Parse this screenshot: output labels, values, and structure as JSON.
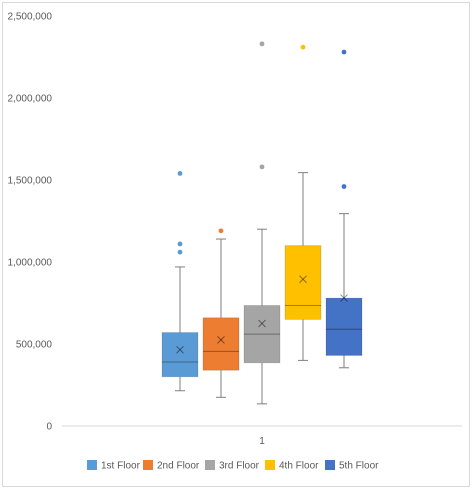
{
  "chart_data": {
    "type": "box",
    "title": "",
    "xlabel": "",
    "ylabel": "",
    "categories": [
      "1"
    ],
    "ylim": [
      0,
      2500000
    ],
    "yticks": [
      0,
      500000,
      1000000,
      1500000,
      2000000,
      2500000
    ],
    "ytick_labels": [
      "0",
      "500,000",
      "1,000,000",
      "1,500,000",
      "2,000,000",
      "2,500,000"
    ],
    "grid": false,
    "legend_position": "bottom",
    "series": [
      {
        "name": "1st Floor",
        "color": "#5b9bd5",
        "min": 215000,
        "q1": 300000,
        "median": 390000,
        "q3": 570000,
        "max": 970000,
        "mean": 465000,
        "outliers": [
          1060000,
          1110000,
          1540000
        ]
      },
      {
        "name": "2nd Floor",
        "color": "#ed7d31",
        "min": 175000,
        "q1": 340000,
        "median": 455000,
        "q3": 660000,
        "max": 1140000,
        "mean": 525000,
        "outliers": [
          1190000
        ]
      },
      {
        "name": "3rd Floor",
        "color": "#a5a5a5",
        "min": 135000,
        "q1": 385000,
        "median": 560000,
        "q3": 735000,
        "max": 1200000,
        "mean": 625000,
        "outliers": [
          1580000,
          2330000
        ]
      },
      {
        "name": "4th Floor",
        "color": "#ffc000",
        "min": 400000,
        "q1": 650000,
        "median": 735000,
        "q3": 1100000,
        "max": 1545000,
        "mean": 895000,
        "outliers": [
          2310000
        ]
      },
      {
        "name": "5th Floor",
        "color": "#4472c4",
        "min": 355000,
        "q1": 430000,
        "median": 590000,
        "q3": 780000,
        "max": 1295000,
        "mean": 780000,
        "outliers": [
          1460000,
          2280000
        ]
      }
    ]
  }
}
